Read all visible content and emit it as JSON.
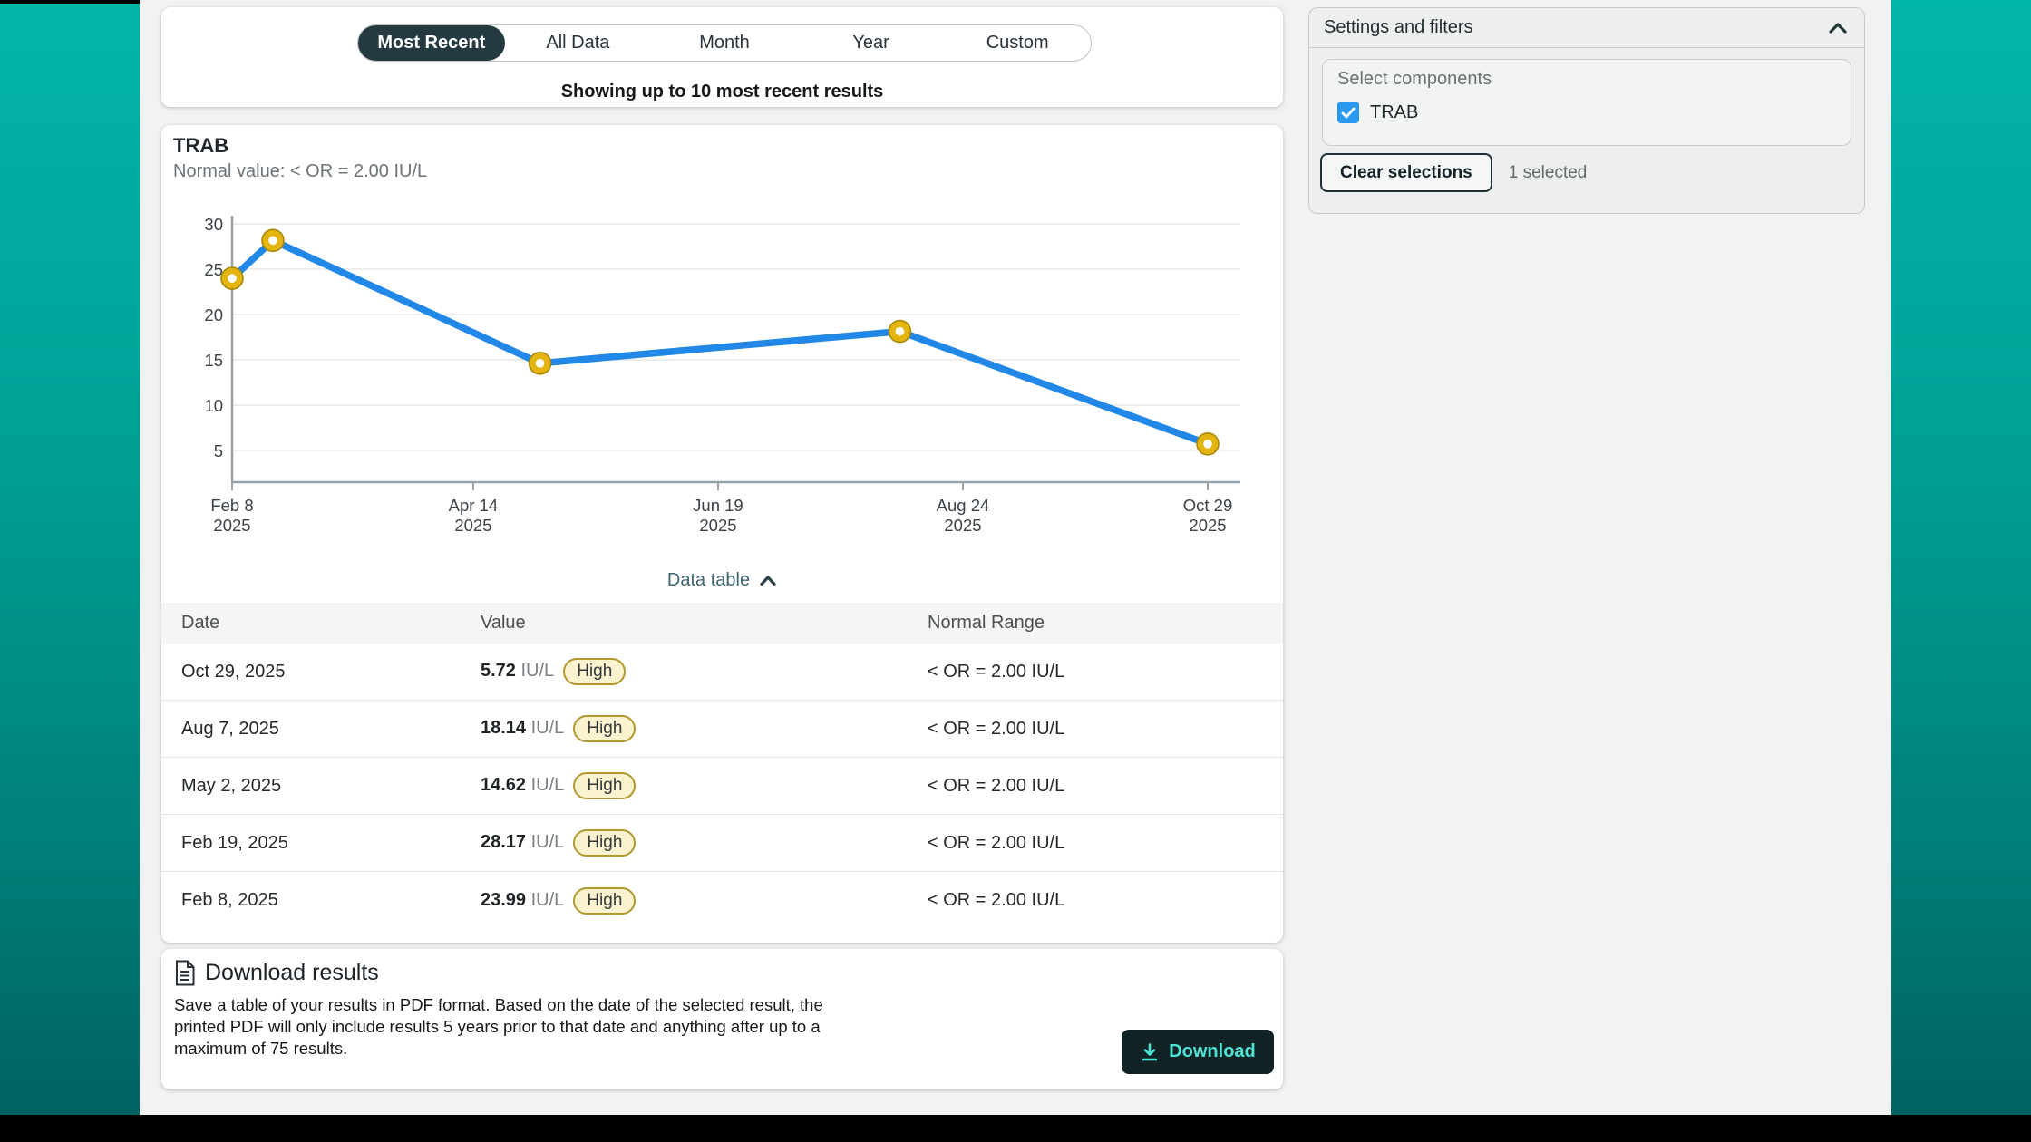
{
  "view_controls": {
    "options": [
      {
        "label": "Most Recent",
        "selected": true
      },
      {
        "label": "All Data",
        "selected": false
      },
      {
        "label": "Month",
        "selected": false
      },
      {
        "label": "Year",
        "selected": false
      },
      {
        "label": "Custom",
        "selected": false
      }
    ],
    "caption": "Showing up to 10 most recent results"
  },
  "result_panel": {
    "test_name": "TRAB",
    "normal_value_label": "Normal value: < OR = 2.00 IU/L",
    "data_table_toggle": "Data table"
  },
  "chart_data": {
    "type": "line",
    "title": "TRAB",
    "subtitle": "Normal value: < OR = 2.00 IU/L",
    "unit": "IU/L",
    "series": [
      {
        "name": "TRAB",
        "points": [
          {
            "date": "Feb 8, 2025",
            "day": 0,
            "value": 23.99
          },
          {
            "date": "Feb 19, 2025",
            "day": 11,
            "value": 28.17
          },
          {
            "date": "May 2, 2025",
            "day": 83,
            "value": 14.62
          },
          {
            "date": "Aug 7, 2025",
            "day": 180,
            "value": 18.14
          },
          {
            "date": "Oct 29, 2025",
            "day": 263,
            "value": 5.72
          }
        ]
      }
    ],
    "x_total_days": 263,
    "x_ticks": [
      {
        "label_line1": "Feb 8",
        "label_line2": "2025",
        "day": 0
      },
      {
        "label_line1": "Apr 14",
        "label_line2": "2025",
        "day": 65
      },
      {
        "label_line1": "Jun 19",
        "label_line2": "2025",
        "day": 131
      },
      {
        "label_line1": "Aug 24",
        "label_line2": "2025",
        "day": 197
      },
      {
        "label_line1": "Oct 29",
        "label_line2": "2025",
        "day": 263
      }
    ],
    "y_ticks": [
      5,
      10,
      15,
      20,
      25,
      30
    ],
    "grid": true,
    "line_color": "#2188e8",
    "marker_ring_color": "#e4b511",
    "marker_edge_color": "#a8890a",
    "marker_fill": "#ffffff"
  },
  "table": {
    "columns": [
      "Date",
      "Value",
      "Normal Range"
    ],
    "rows": [
      {
        "date": "Oct 29, 2025",
        "value": "5.72",
        "unit": "IU/L",
        "flag": "High",
        "normal_range": "< OR = 2.00 IU/L"
      },
      {
        "date": "Aug 7, 2025",
        "value": "18.14",
        "unit": "IU/L",
        "flag": "High",
        "normal_range": "< OR = 2.00 IU/L"
      },
      {
        "date": "May 2, 2025",
        "value": "14.62",
        "unit": "IU/L",
        "flag": "High",
        "normal_range": "< OR = 2.00 IU/L"
      },
      {
        "date": "Feb 19, 2025",
        "value": "28.17",
        "unit": "IU/L",
        "flag": "High",
        "normal_range": "< OR = 2.00 IU/L"
      },
      {
        "date": "Feb 8, 2025",
        "value": "23.99",
        "unit": "IU/L",
        "flag": "High",
        "normal_range": "< OR = 2.00 IU/L"
      }
    ]
  },
  "download": {
    "title": "Download results",
    "description": "Save a table of your results in PDF format. Based on the date of the selected result, the printed PDF will only include results 5 years prior to that date and anything after up to a maximum of 75 results.",
    "button_label": "Download"
  },
  "sidebar": {
    "title": "Settings and filters",
    "select_components_label": "Select components",
    "components": [
      {
        "label": "TRAB",
        "checked": true
      }
    ],
    "clear_button_label": "Clear selections",
    "selected_count_text": "1 selected"
  },
  "icons": {
    "settings_collapse": "chevron-up",
    "data_table_toggle": "chevron-up",
    "download_button": "download-arrow",
    "download_title": "document",
    "checkbox": "checkmark"
  },
  "colors": {
    "accent_teal_top": "#02b5a9",
    "accent_teal_bottom": "#006260",
    "selected_pill": "#253a40",
    "line_blue": "#2188e8",
    "marker_gold": "#e4b511",
    "high_badge_bg": "#fbf3cf",
    "high_badge_border": "#b2982e",
    "download_button_bg": "#122326",
    "download_button_text": "#4ee2d3",
    "checkbox_blue": "#2b99f0"
  }
}
